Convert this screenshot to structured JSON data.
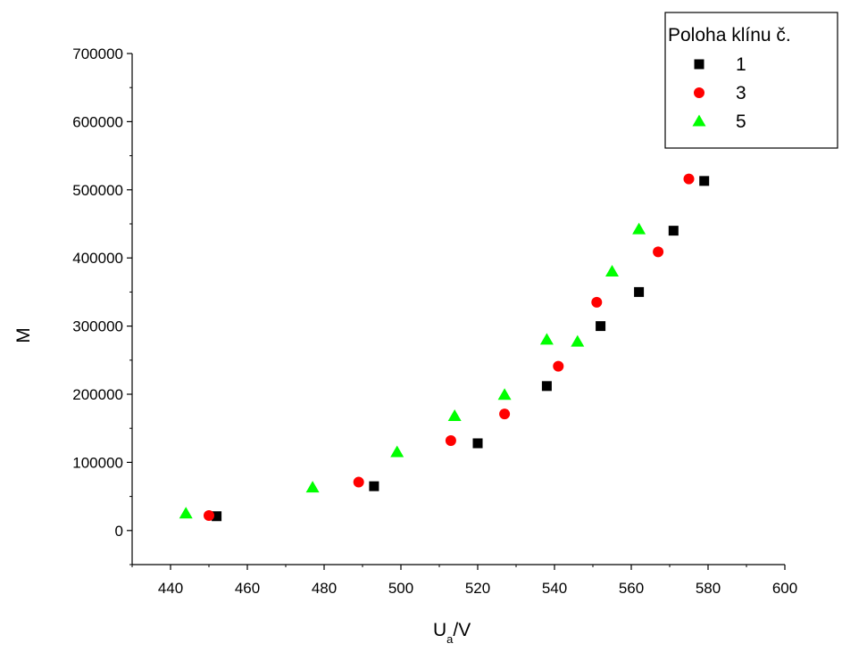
{
  "chart_data": {
    "type": "scatter",
    "xlabel_main": "U",
    "xlabel_sub": "a",
    "xlabel_unit": "/V",
    "ylabel": "M",
    "xlim": [
      430,
      600
    ],
    "ylim": [
      -50000,
      700000
    ],
    "x_ticks": [
      440,
      460,
      480,
      500,
      520,
      540,
      560,
      580,
      600
    ],
    "y_ticks": [
      0,
      100000,
      200000,
      300000,
      400000,
      500000,
      600000,
      700000
    ],
    "grid": false,
    "legend": {
      "title": "Poloha klínu č.",
      "placement": "top-right"
    },
    "series": [
      {
        "name": "1",
        "marker": "square",
        "color": "#000000",
        "points": [
          [
            452,
            21000
          ],
          [
            493,
            65000
          ],
          [
            520,
            128000
          ],
          [
            538,
            212000
          ],
          [
            552,
            300000
          ],
          [
            562,
            350000
          ],
          [
            571,
            440000
          ],
          [
            579,
            513000
          ]
        ]
      },
      {
        "name": "3",
        "marker": "circle",
        "color": "#ff0000",
        "points": [
          [
            450,
            22000
          ],
          [
            489,
            71000
          ],
          [
            513,
            132000
          ],
          [
            527,
            171000
          ],
          [
            541,
            241000
          ],
          [
            551,
            335000
          ],
          [
            567,
            409000
          ],
          [
            575,
            516000
          ]
        ]
      },
      {
        "name": "5",
        "marker": "triangle",
        "color": "#00ff00",
        "points": [
          [
            444,
            25000
          ],
          [
            477,
            63000
          ],
          [
            499,
            115000
          ],
          [
            514,
            168000
          ],
          [
            527,
            199000
          ],
          [
            538,
            280000
          ],
          [
            546,
            277000
          ],
          [
            555,
            380000
          ],
          [
            562,
            442000
          ]
        ]
      }
    ]
  }
}
